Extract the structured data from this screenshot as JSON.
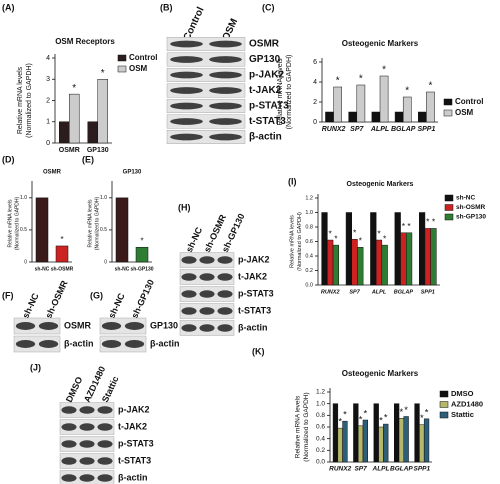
{
  "chart_data": [
    {
      "type": "bar",
      "panel_label": "(A)",
      "title": "OSM Receptors",
      "y_label": [
        "Relative mRNA levels",
        "(Normalized to GAPDH)"
      ],
      "categories": [
        "OSMR",
        "GP130"
      ],
      "series": [
        {
          "name": "Control",
          "color": "#2b1d1d",
          "values": [
            1,
            1
          ],
          "significance": [
            null,
            null
          ]
        },
        {
          "name": "OSM",
          "color": "#cccccc",
          "values": [
            2.3,
            3.0
          ],
          "significance": [
            "*",
            "*"
          ]
        }
      ],
      "ylim": [
        0,
        4
      ],
      "yticks": [
        0,
        1,
        2,
        3,
        4
      ],
      "legend": "upper right"
    },
    {
      "type": "bar",
      "panel_label": "(C)",
      "title": "Osteogenic Markers",
      "y_label": [
        "Relative mRNA levels",
        "(Normalized to GAPDH)"
      ],
      "categories": [
        "RUNX2",
        "SP7",
        "ALPL",
        "BGLAP",
        "SPP1"
      ],
      "category_italic": true,
      "series": [
        {
          "name": "Control",
          "color": "#111111",
          "values": [
            1,
            1,
            1,
            1,
            1
          ],
          "significance": [
            null,
            null,
            null,
            null,
            null
          ]
        },
        {
          "name": "OSM",
          "color": "#cccccc",
          "values": [
            3.5,
            3.7,
            4.6,
            2.5,
            3.0
          ],
          "significance": [
            "*",
            "*",
            "*",
            "*",
            "*"
          ]
        }
      ],
      "ylim": [
        0,
        6
      ],
      "yticks": [
        0,
        2,
        4,
        6
      ],
      "legend": "center right"
    },
    {
      "type": "bar",
      "panel_label": "(D)",
      "title": "OSMR",
      "y_label": [
        "Relative mRNA levels",
        "(Normalized to GAPDH)"
      ],
      "categories": [
        "sh-NC",
        "sh-OSMR"
      ],
      "values": [
        1.0,
        0.25
      ],
      "colors": [
        "#3b1a1a",
        "#cc2222"
      ],
      "significance": [
        null,
        "*"
      ],
      "ylim": [
        0,
        1.2
      ],
      "yticks": [
        0,
        0.5,
        {
          "value": 1,
          "label": "1.0"
        }
      ]
    },
    {
      "type": "bar",
      "panel_label": "(E)",
      "title": "GP130",
      "y_label": [
        "Relative mRNA levels",
        "(Normalized to GAPDH)"
      ],
      "categories": [
        "sh-NC",
        "sh-GP130"
      ],
      "values": [
        1.0,
        0.23
      ],
      "colors": [
        "#3b1a1a",
        "#2e7d32"
      ],
      "significance": [
        null,
        "*"
      ],
      "ylim": [
        0,
        1.2
      ],
      "yticks": [
        0,
        0.5,
        {
          "value": 1,
          "label": "1.0"
        }
      ]
    },
    {
      "type": "bar",
      "panel_label": "(I)",
      "title": "Osteogenic Markers",
      "y_label": [
        "Relative mRNA levels",
        "(Normalized to GAPDH)"
      ],
      "categories": [
        "RUNX2",
        "SP7",
        "ALPL",
        "BGLAP",
        "SPP1"
      ],
      "category_italic": true,
      "series": [
        {
          "name": "sh-NC",
          "color": "#111111",
          "values": [
            1,
            1,
            1,
            1,
            1
          ],
          "significance": [
            null,
            null,
            null,
            null,
            null
          ]
        },
        {
          "name": "sh-OSMR",
          "color": "#cc2222",
          "values": [
            0.62,
            0.63,
            0.62,
            0.72,
            0.78
          ],
          "significance": [
            "*",
            "*",
            "*",
            "*",
            "*"
          ]
        },
        {
          "name": "sh-GP130",
          "color": "#2e7d32",
          "values": [
            0.55,
            0.52,
            0.55,
            0.72,
            0.78
          ],
          "significance": [
            "*",
            "*",
            "*",
            "*",
            "*"
          ]
        }
      ],
      "ylim": [
        0,
        1.2
      ],
      "yticks": [
        {
          "value": 0,
          "label": "0.0"
        },
        0.2,
        0.4,
        0.6,
        0.8,
        {
          "value": 1,
          "label": "1.0"
        },
        1.2
      ],
      "legend": "upper right"
    },
    {
      "type": "bar",
      "panel_label": "(K)",
      "title": "Osteogenic Markers",
      "y_label": [
        "Relative mRNA levels",
        "(Normalized to GAPDH)"
      ],
      "categories": [
        "RUNX2",
        "SP7",
        "ALPL",
        "BGLAP",
        "SPP1"
      ],
      "category_italic": true,
      "series": [
        {
          "name": "DMSO",
          "color": "#111111",
          "values": [
            1,
            1,
            1,
            1,
            1
          ],
          "significance": [
            null,
            null,
            null,
            null,
            null
          ]
        },
        {
          "name": "AZD1480",
          "color": "#b5b86a",
          "values": [
            0.58,
            0.62,
            0.6,
            0.75,
            0.64
          ],
          "significance": [
            "*",
            "*",
            "*",
            "*",
            "*"
          ]
        },
        {
          "name": "Stattic",
          "color": "#2e5f7a",
          "values": [
            0.7,
            0.72,
            0.65,
            0.78,
            0.74
          ],
          "significance": [
            "*",
            "*",
            "*",
            "*",
            "*"
          ]
        }
      ],
      "ylim": [
        0,
        1.2
      ],
      "yticks": [
        {
          "value": 0,
          "label": "0.0"
        },
        0.2,
        0.4,
        0.6,
        0.8,
        {
          "value": 1,
          "label": "1.0"
        },
        1.2
      ],
      "legend": "upper right"
    }
  ],
  "blots": [
    {
      "panel_label": "(B)",
      "lanes": [
        "Control",
        "OSM"
      ],
      "bands": [
        "OSMR",
        "GP130",
        "p-JAK2",
        "t-JAK2",
        "p-STAT3",
        "t-STAT3",
        "β-actin"
      ]
    },
    {
      "panel_label": "(F)",
      "lanes": [
        "sh-NC",
        "sh-OSMR"
      ],
      "bands": [
        "OSMR",
        "β-actin"
      ]
    },
    {
      "panel_label": "(G)",
      "lanes": [
        "sh-NC",
        "sh-GP130"
      ],
      "bands": [
        "GP130",
        "β-actin"
      ]
    },
    {
      "panel_label": "(H)",
      "lanes": [
        "sh-NC",
        "sh-OSMR",
        "sh-GP130"
      ],
      "bands": [
        "p-JAK2",
        "t-JAK2",
        "p-STAT3",
        "t-STAT3",
        "β-actin"
      ]
    },
    {
      "panel_label": "(J)",
      "lanes": [
        "DMSO",
        "AZD1480",
        "Stattic"
      ],
      "bands": [
        "p-JAK2",
        "t-JAK2",
        "p-STAT3",
        "t-STAT3",
        "β-actin"
      ]
    }
  ]
}
